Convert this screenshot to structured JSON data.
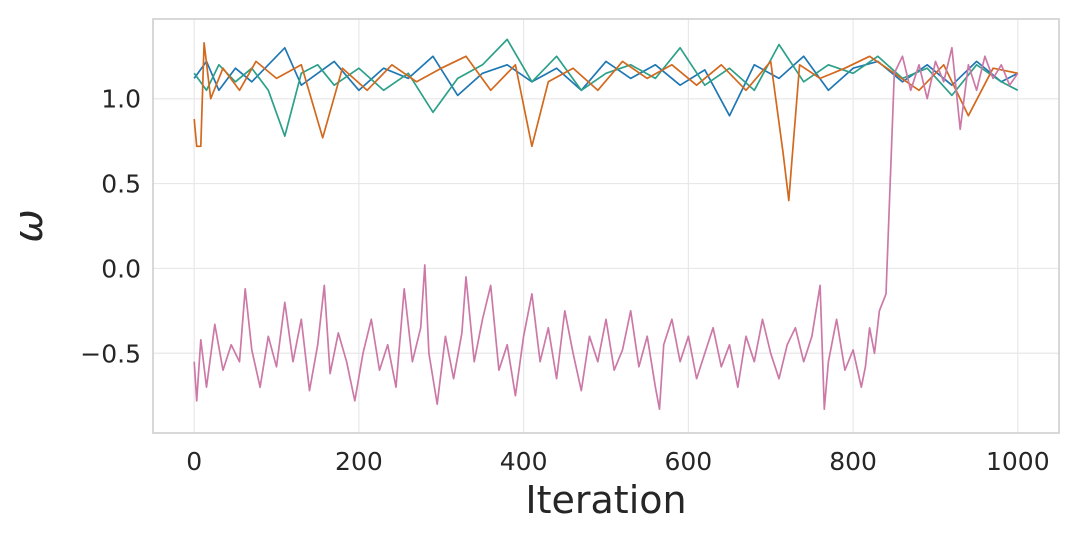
{
  "chart_data": {
    "type": "line",
    "title": "",
    "xlabel": "Iteration",
    "ylabel": "ω",
    "xlim": [
      -50,
      1050
    ],
    "ylim": [
      -0.97,
      1.47
    ],
    "xticks": [
      0,
      200,
      400,
      600,
      800,
      1000
    ],
    "xtick_labels": [
      "0",
      "200",
      "400",
      "600",
      "800",
      "1000"
    ],
    "yticks": [
      -0.5,
      0.0,
      0.5,
      1.0
    ],
    "ytick_labels": [
      "−0.5",
      "0.0",
      "0.5",
      "1.0"
    ],
    "grid": true,
    "legend": "none",
    "colors": [
      "#1f77b4",
      "#2ca089",
      "#d2691e",
      "#cc79a7"
    ],
    "series": [
      {
        "x": [
          0,
          15,
          30,
          50,
          70,
          90,
          110,
          130,
          150,
          170,
          200,
          230,
          260,
          290,
          320,
          350,
          380,
          410,
          440,
          470,
          500,
          530,
          560,
          590,
          620,
          650,
          680,
          710,
          740,
          770,
          800,
          830,
          860,
          890,
          920,
          950,
          980,
          1000
        ],
        "y": [
          1.12,
          1.22,
          1.05,
          1.18,
          1.1,
          1.2,
          1.3,
          1.08,
          1.15,
          1.22,
          1.05,
          1.18,
          1.12,
          1.25,
          1.02,
          1.15,
          1.2,
          1.1,
          1.18,
          1.05,
          1.22,
          1.12,
          1.2,
          1.08,
          1.17,
          0.9,
          1.2,
          1.12,
          1.25,
          1.05,
          1.18,
          1.22,
          1.1,
          1.2,
          1.08,
          1.22,
          1.1,
          1.15
        ]
      },
      {
        "x": [
          0,
          15,
          30,
          50,
          70,
          90,
          110,
          130,
          150,
          170,
          200,
          230,
          260,
          290,
          320,
          350,
          380,
          410,
          440,
          470,
          500,
          530,
          560,
          590,
          620,
          650,
          680,
          710,
          740,
          770,
          800,
          830,
          860,
          890,
          920,
          950,
          980,
          1000
        ],
        "y": [
          1.15,
          1.05,
          1.2,
          1.1,
          1.18,
          1.05,
          0.78,
          1.15,
          1.2,
          1.08,
          1.18,
          1.05,
          1.15,
          0.92,
          1.12,
          1.2,
          1.35,
          1.1,
          1.25,
          1.05,
          1.15,
          1.2,
          1.12,
          1.3,
          1.08,
          1.18,
          1.05,
          1.32,
          1.1,
          1.2,
          1.15,
          1.25,
          1.12,
          1.18,
          1.02,
          1.2,
          1.1,
          1.05
        ]
      },
      {
        "x": [
          0,
          3,
          8,
          12,
          20,
          35,
          55,
          75,
          100,
          130,
          156,
          180,
          210,
          240,
          270,
          300,
          330,
          360,
          390,
          410,
          430,
          460,
          490,
          520,
          550,
          580,
          610,
          640,
          670,
          700,
          715,
          722,
          726,
          735,
          760,
          790,
          820,
          850,
          880,
          910,
          940,
          970,
          1000
        ],
        "y": [
          0.88,
          0.72,
          0.72,
          1.33,
          1.0,
          1.18,
          1.05,
          1.22,
          1.12,
          1.2,
          0.77,
          1.18,
          1.05,
          1.2,
          1.1,
          1.18,
          1.25,
          1.05,
          1.2,
          0.72,
          1.1,
          1.18,
          1.05,
          1.22,
          1.12,
          1.2,
          1.08,
          1.2,
          1.05,
          1.22,
          0.68,
          0.4,
          0.65,
          1.2,
          1.12,
          1.18,
          1.25,
          1.15,
          1.05,
          1.2,
          0.9,
          1.18,
          1.15
        ]
      },
      {
        "x": [
          0,
          3,
          8,
          15,
          25,
          35,
          45,
          55,
          62,
          70,
          80,
          90,
          100,
          110,
          120,
          130,
          140,
          150,
          158,
          165,
          175,
          185,
          195,
          205,
          215,
          225,
          235,
          245,
          255,
          265,
          275,
          280,
          285,
          295,
          305,
          315,
          325,
          330,
          340,
          350,
          360,
          370,
          380,
          390,
          400,
          410,
          420,
          430,
          440,
          450,
          460,
          470,
          480,
          490,
          500,
          510,
          520,
          530,
          540,
          550,
          560,
          565,
          570,
          580,
          590,
          600,
          610,
          620,
          630,
          640,
          650,
          660,
          670,
          680,
          690,
          700,
          710,
          720,
          730,
          740,
          750,
          760,
          765,
          770,
          780,
          790,
          800,
          810,
          815,
          820,
          826,
          832,
          840,
          850,
          860,
          870,
          880,
          890,
          900,
          910,
          920,
          930,
          940,
          950,
          960,
          970,
          980,
          990,
          1000
        ],
        "y": [
          -0.55,
          -0.78,
          -0.42,
          -0.7,
          -0.33,
          -0.6,
          -0.45,
          -0.55,
          -0.12,
          -0.48,
          -0.7,
          -0.4,
          -0.58,
          -0.2,
          -0.55,
          -0.3,
          -0.72,
          -0.45,
          -0.1,
          -0.62,
          -0.38,
          -0.55,
          -0.78,
          -0.5,
          -0.3,
          -0.6,
          -0.45,
          -0.7,
          -0.12,
          -0.55,
          -0.35,
          0.02,
          -0.5,
          -0.8,
          -0.4,
          -0.65,
          -0.38,
          -0.05,
          -0.55,
          -0.3,
          -0.1,
          -0.6,
          -0.45,
          -0.75,
          -0.4,
          -0.15,
          -0.55,
          -0.35,
          -0.65,
          -0.25,
          -0.5,
          -0.72,
          -0.4,
          -0.55,
          -0.3,
          -0.6,
          -0.48,
          -0.25,
          -0.58,
          -0.4,
          -0.7,
          -0.83,
          -0.45,
          -0.3,
          -0.55,
          -0.4,
          -0.65,
          -0.5,
          -0.35,
          -0.58,
          -0.45,
          -0.7,
          -0.4,
          -0.55,
          -0.3,
          -0.5,
          -0.65,
          -0.45,
          -0.35,
          -0.55,
          -0.4,
          -0.1,
          -0.83,
          -0.55,
          -0.3,
          -0.6,
          -0.48,
          -0.7,
          -0.58,
          -0.35,
          -0.5,
          -0.25,
          -0.15,
          1.15,
          1.25,
          1.05,
          1.2,
          1.0,
          1.22,
          1.1,
          1.3,
          0.82,
          1.2,
          1.05,
          1.25,
          1.12,
          1.2,
          1.08,
          1.15
        ]
      }
    ]
  }
}
